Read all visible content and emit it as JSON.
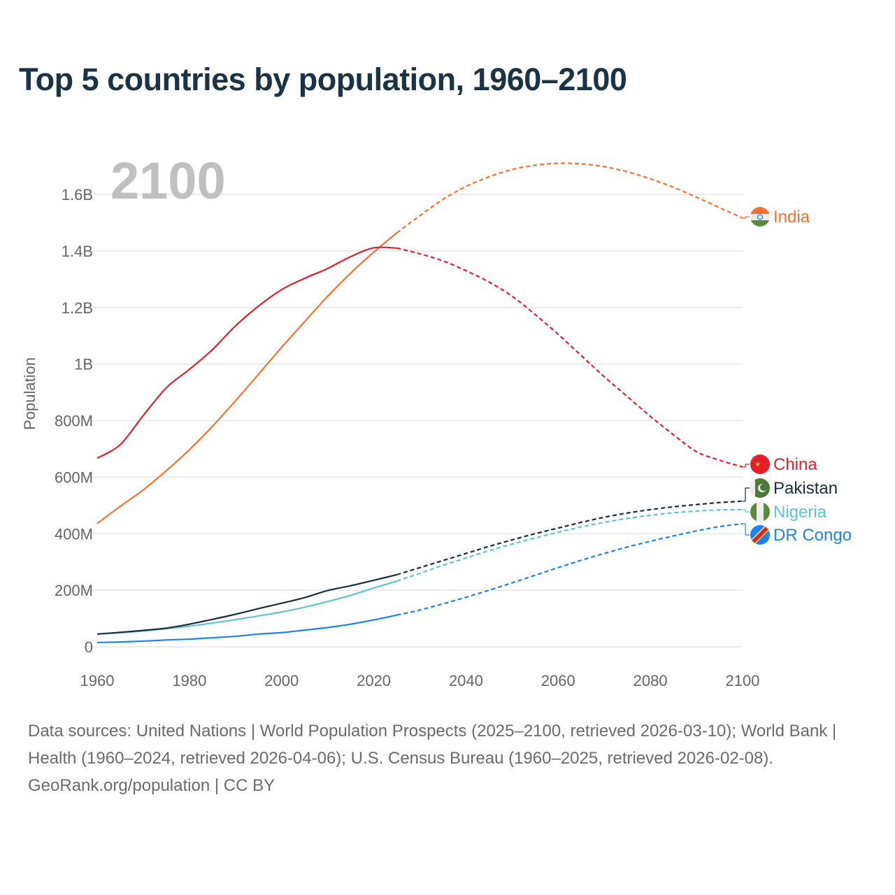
{
  "chart_data": {
    "type": "line",
    "title": "Top 5 countries by population, 1960–2100",
    "year_overlay": "2100",
    "xlabel": "",
    "ylabel": "Population",
    "xlim": [
      1960,
      2100
    ],
    "ylim": [
      0,
      1600000000
    ],
    "x_ticks": [
      1960,
      1980,
      2000,
      2020,
      2040,
      2060,
      2080,
      2100
    ],
    "x_tick_labels": [
      "1960",
      "1980",
      "2000",
      "2020",
      "2040",
      "2060",
      "2080",
      "2100"
    ],
    "y_ticks": [
      0,
      200,
      400,
      600,
      800,
      1000,
      1200,
      1400,
      1600
    ],
    "y_tick_labels": [
      "0",
      "200M",
      "400M",
      "600M",
      "800M",
      "1B",
      "1.2B",
      "1.4B",
      "1.6B"
    ],
    "y_unit": "millions",
    "grid": true,
    "projection_start_year": 2025,
    "legend_placement": "right, inline labels at line ends",
    "x": [
      1960,
      1965,
      1970,
      1975,
      1980,
      1985,
      1990,
      1995,
      2000,
      2005,
      2010,
      2015,
      2020,
      2025,
      2030,
      2035,
      2040,
      2045,
      2050,
      2055,
      2060,
      2065,
      2070,
      2075,
      2080,
      2085,
      2090,
      2095,
      2100
    ],
    "series": [
      {
        "name": "India",
        "color": "#f97131",
        "flag": "india-flag",
        "values": [
          436,
          497,
          555,
          623,
          697,
          780,
          870,
          964,
          1059,
          1150,
          1240,
          1322,
          1396,
          1464,
          1525,
          1582,
          1628,
          1662,
          1688,
          1703,
          1710,
          1708,
          1698,
          1680,
          1655,
          1625,
          1590,
          1553,
          1516
        ]
      },
      {
        "name": "China",
        "color": "#e61e2a",
        "flag": "china-flag",
        "values": [
          667,
          715,
          818,
          916,
          981,
          1051,
          1135,
          1205,
          1263,
          1303,
          1338,
          1380,
          1411,
          1410,
          1390,
          1365,
          1330,
          1290,
          1240,
          1175,
          1105,
          1030,
          955,
          885,
          815,
          750,
          690,
          660,
          636
        ]
      },
      {
        "name": "Pakistan",
        "color": "#1a2e3b",
        "flag": "pakistan-flag",
        "values": [
          45,
          51,
          58,
          66,
          80,
          97,
          115,
          135,
          154,
          174,
          199,
          216,
          235,
          255,
          280,
          305,
          330,
          355,
          378,
          400,
          420,
          440,
          458,
          473,
          485,
          495,
          503,
          510,
          515
        ]
      },
      {
        "name": "Nigeria",
        "color": "#5ec4d0",
        "flag": "nigeria-flag",
        "values": [
          45,
          50,
          56,
          64,
          73,
          84,
          96,
          109,
          123,
          140,
          160,
          182,
          208,
          232,
          260,
          288,
          314,
          340,
          363,
          385,
          405,
          424,
          440,
          454,
          465,
          474,
          480,
          484,
          485
        ]
      },
      {
        "name": "DR Congo",
        "color": "#1a84f0",
        "flag": "drcongo-flag",
        "values": [
          15,
          17,
          20,
          24,
          27,
          32,
          37,
          45,
          50,
          59,
          68,
          80,
          95,
          112,
          130,
          152,
          175,
          200,
          226,
          253,
          280,
          306,
          330,
          353,
          373,
          392,
          410,
          425,
          435
        ]
      }
    ]
  },
  "footer": {
    "sources": "Data sources: United Nations | World Population Prospects (2025–2100, retrieved 2026-03-10); World Bank | Health (1960–2024, retrieved 2026-04-06); U.S. Census Bureau (1960–2025, retrieved 2026-02-08).",
    "credit": "GeoRank.org/population | CC BY"
  }
}
